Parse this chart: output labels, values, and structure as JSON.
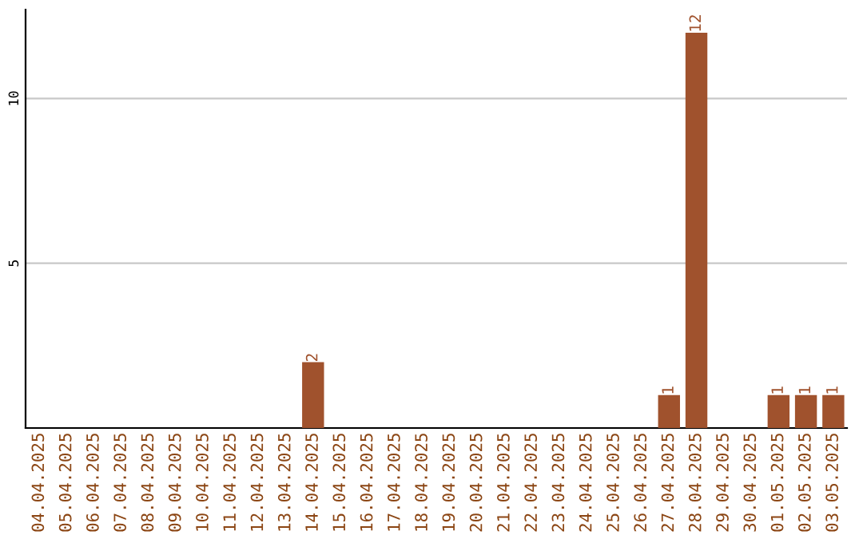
{
  "chart_data": {
    "type": "bar",
    "categories": [
      "04.04.2025",
      "05.04.2025",
      "06.04.2025",
      "07.04.2025",
      "08.04.2025",
      "09.04.2025",
      "10.04.2025",
      "11.04.2025",
      "12.04.2025",
      "13.04.2025",
      "14.04.2025",
      "15.04.2025",
      "16.04.2025",
      "17.04.2025",
      "18.04.2025",
      "19.04.2025",
      "20.04.2025",
      "21.04.2025",
      "22.04.2025",
      "23.04.2025",
      "24.04.2025",
      "25.04.2025",
      "26.04.2025",
      "27.04.2025",
      "28.04.2025",
      "29.04.2025",
      "30.04.2025",
      "01.05.2025",
      "02.05.2025",
      "03.05.2025"
    ],
    "values": [
      0,
      0,
      0,
      0,
      0,
      0,
      0,
      0,
      0,
      0,
      2,
      0,
      0,
      0,
      0,
      0,
      0,
      0,
      0,
      0,
      0,
      0,
      0,
      1,
      12,
      0,
      0,
      1,
      1,
      1
    ],
    "value_labels": [
      null,
      null,
      null,
      null,
      null,
      null,
      null,
      null,
      null,
      null,
      "2",
      null,
      null,
      null,
      null,
      null,
      null,
      null,
      null,
      null,
      null,
      null,
      null,
      "1",
      "12",
      null,
      null,
      "1",
      "1",
      "1"
    ],
    "color": "#a0522d",
    "ylim": [
      0,
      12.7
    ],
    "yticks": [
      5,
      10
    ],
    "grid": "y"
  }
}
